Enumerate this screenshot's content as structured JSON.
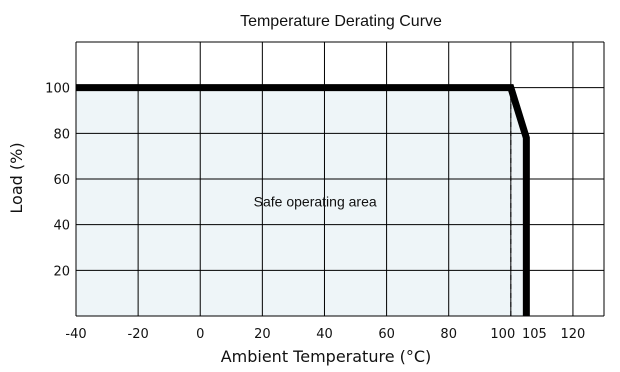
{
  "chart_data": {
    "type": "line",
    "title": "Temperature Derating Curve",
    "xlabel": "Ambient Temperature (°C)",
    "ylabel": "Load (%)",
    "xlim": [
      -40,
      130
    ],
    "ylim": [
      0,
      120
    ],
    "x_ticks": [
      -40,
      -20,
      0,
      20,
      40,
      60,
      80,
      100,
      105,
      120
    ],
    "x_tick_labels": [
      "-40",
      "-20",
      "0",
      "20",
      "40",
      "60",
      "80",
      "100",
      "105",
      "120"
    ],
    "y_ticks": [
      20,
      40,
      60,
      80,
      100
    ],
    "y_tick_labels": [
      "20",
      "40",
      "60",
      "80",
      "100"
    ],
    "grid": true,
    "series": [
      {
        "x": [
          -40,
          100,
          105,
          105
        ],
        "y": [
          100,
          100,
          78,
          0
        ]
      }
    ],
    "reference_lines": [
      {
        "orientation": "vertical",
        "x": 100,
        "y_range": [
          0,
          100
        ],
        "style": "dashed"
      }
    ],
    "shaded_region": {
      "x": [
        -40,
        100,
        105,
        105,
        -40
      ],
      "y": [
        100,
        100,
        78,
        0,
        0
      ]
    },
    "annotations": [
      {
        "text": "Safe operating area",
        "x": 37,
        "y": 48
      }
    ],
    "colors": {
      "line": "#000000",
      "grid": "#000000",
      "fill": "#eef5f8"
    }
  }
}
